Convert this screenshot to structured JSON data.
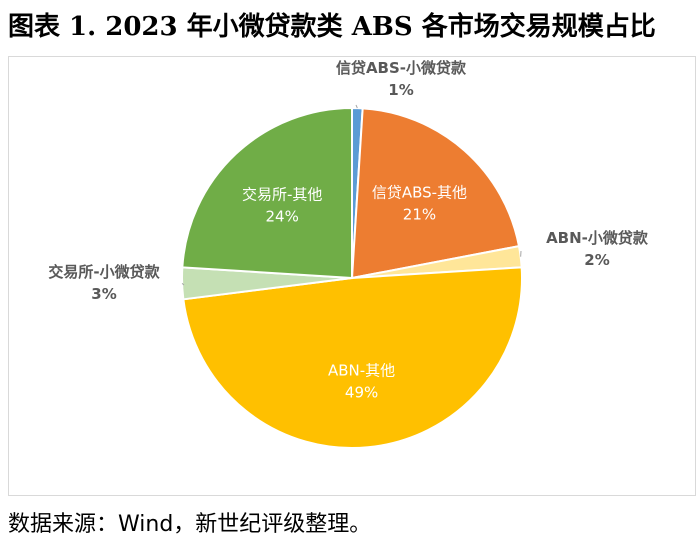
{
  "title": "图表 1. 2023 年小微贷款类 ABS 各市场交易规模占比",
  "source": "数据来源：Wind，新世纪评级整理。",
  "chart_data": {
    "type": "pie",
    "title": "",
    "unit": "%",
    "slices": [
      {
        "label": "信贷ABS-小微贷款",
        "value": 1,
        "pct": "1%",
        "color": "#5B9BD5",
        "placement": "outside"
      },
      {
        "label": "信贷ABS-其他",
        "value": 21,
        "pct": "21%",
        "color": "#ED7D31",
        "placement": "inside"
      },
      {
        "label": "ABN-小微贷款",
        "value": 2,
        "pct": "2%",
        "color": "#FFE699",
        "placement": "outside"
      },
      {
        "label": "ABN-其他",
        "value": 49,
        "pct": "49%",
        "color": "#FFC000",
        "placement": "inside"
      },
      {
        "label": "交易所-小微贷款",
        "value": 3,
        "pct": "3%",
        "color": "#C5E0B4",
        "placement": "outside"
      },
      {
        "label": "交易所-其他",
        "value": 24,
        "pct": "24%",
        "color": "#70AD47",
        "placement": "inside"
      }
    ]
  }
}
